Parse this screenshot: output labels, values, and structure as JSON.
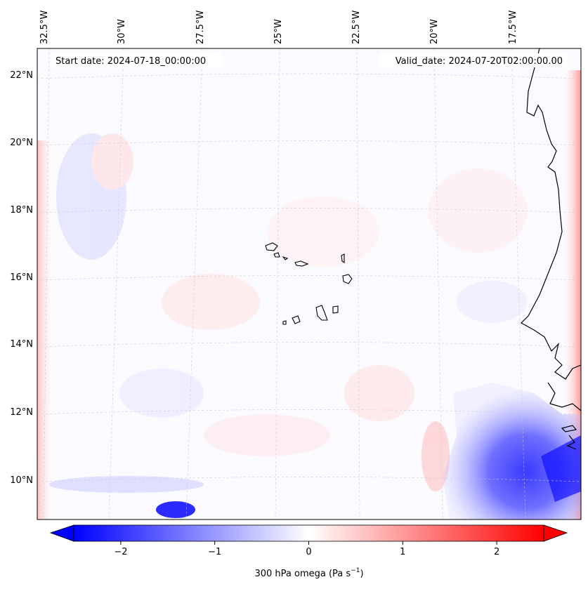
{
  "map": {
    "start_date": "Start date: 2024-07-18_00:00:00",
    "valid_date": "Valid_date: 2024-07-20T02:00:00.00",
    "lon_labels": [
      "32.5°W",
      "30°W",
      "27.5°W",
      "25°W",
      "22.5°W",
      "20°W",
      "17.5°W"
    ],
    "lat_labels": [
      "22°N",
      "20°N",
      "18°N",
      "16°N",
      "14°N",
      "12°N",
      "10°N"
    ],
    "field": "300 hPa omega",
    "coastline_color": "#000000",
    "gridline_color": "#c8c8c8"
  },
  "colorbar": {
    "label_main": "300 hPa omega (Pa s",
    "label_sup": "−1",
    "label_close": ")",
    "ticks": [
      "−2",
      "−1",
      "0",
      "1",
      "2"
    ],
    "tick_values": [
      -2,
      -1,
      0,
      1,
      2
    ],
    "vmin": -2.5,
    "vmax": 2.5,
    "cmap": "bwr",
    "color_low": "#0000ff",
    "color_mid": "#ffffff",
    "color_high": "#ff0000",
    "extend": "both"
  }
}
